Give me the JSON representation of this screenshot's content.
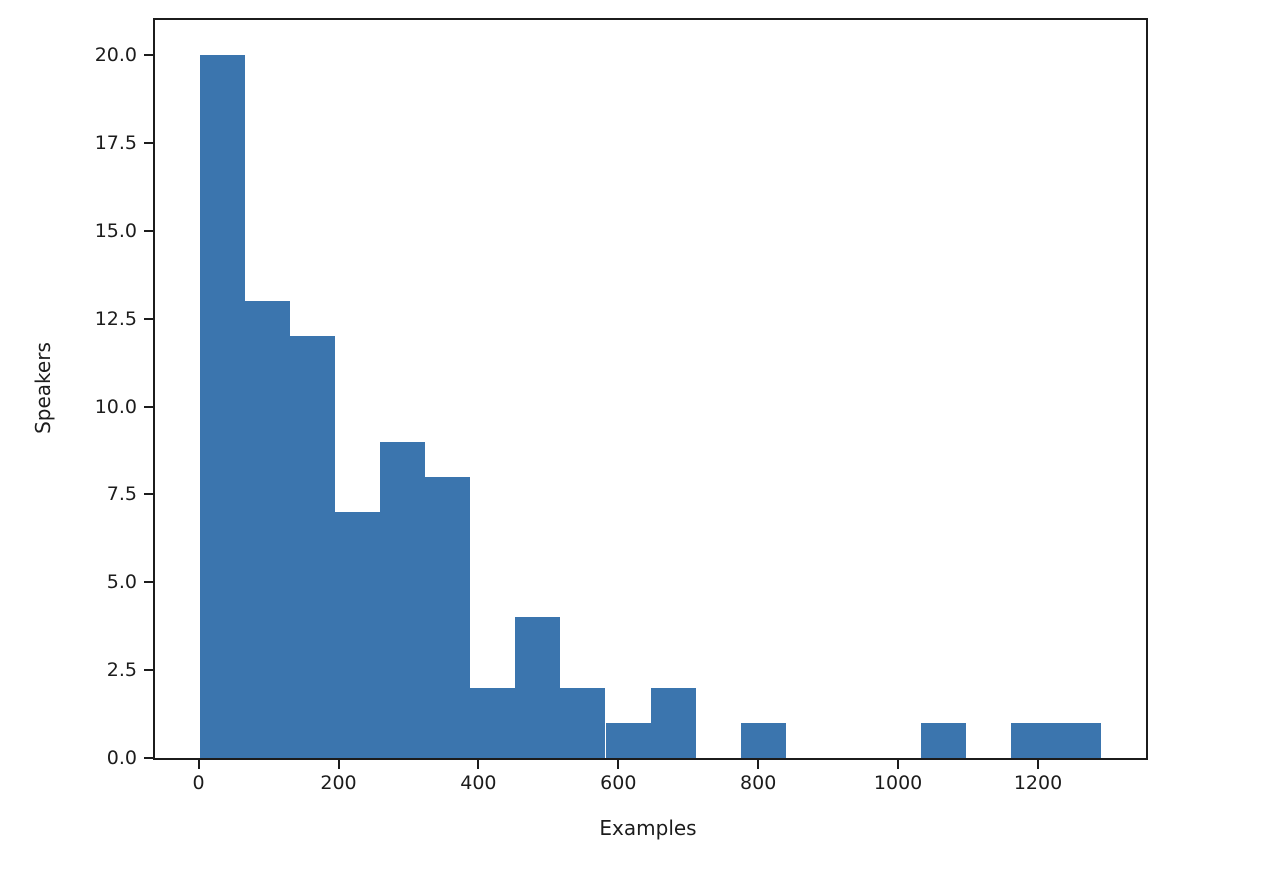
{
  "chart_data": {
    "type": "bar",
    "subtype": "histogram",
    "title": "",
    "xlabel": "Examples",
    "ylabel": "Speakers",
    "bar_color": "#3b75ae",
    "axis_color": "#1c1c1c",
    "text_color": "#1c1c1c",
    "background_color": "#ffffff",
    "grid": "off",
    "legend": "none",
    "bins": {
      "start": 2,
      "width": 64.4,
      "count": 20,
      "end": 1290
    },
    "counts": [
      20,
      13,
      12,
      7,
      9,
      8,
      2,
      4,
      2,
      1,
      2,
      0,
      1,
      0,
      0,
      0,
      1,
      0,
      1,
      1
    ],
    "xlim": [
      -62.4,
      1354.4
    ],
    "ylim": [
      0,
      21
    ],
    "x_ticks": [
      {
        "value": 0,
        "label": "0"
      },
      {
        "value": 200,
        "label": "200"
      },
      {
        "value": 400,
        "label": "400"
      },
      {
        "value": 600,
        "label": "600"
      },
      {
        "value": 800,
        "label": "800"
      },
      {
        "value": 1000,
        "label": "1000"
      },
      {
        "value": 1200,
        "label": "1200"
      }
    ],
    "y_ticks": [
      {
        "value": 0,
        "label": "0.0"
      },
      {
        "value": 2.5,
        "label": "2.5"
      },
      {
        "value": 5,
        "label": "5.0"
      },
      {
        "value": 7.5,
        "label": "7.5"
      },
      {
        "value": 10,
        "label": "10.0"
      },
      {
        "value": 12.5,
        "label": "12.5"
      },
      {
        "value": 15,
        "label": "15.0"
      },
      {
        "value": 17.5,
        "label": "17.5"
      },
      {
        "value": 20,
        "label": "20.0"
      }
    ]
  }
}
